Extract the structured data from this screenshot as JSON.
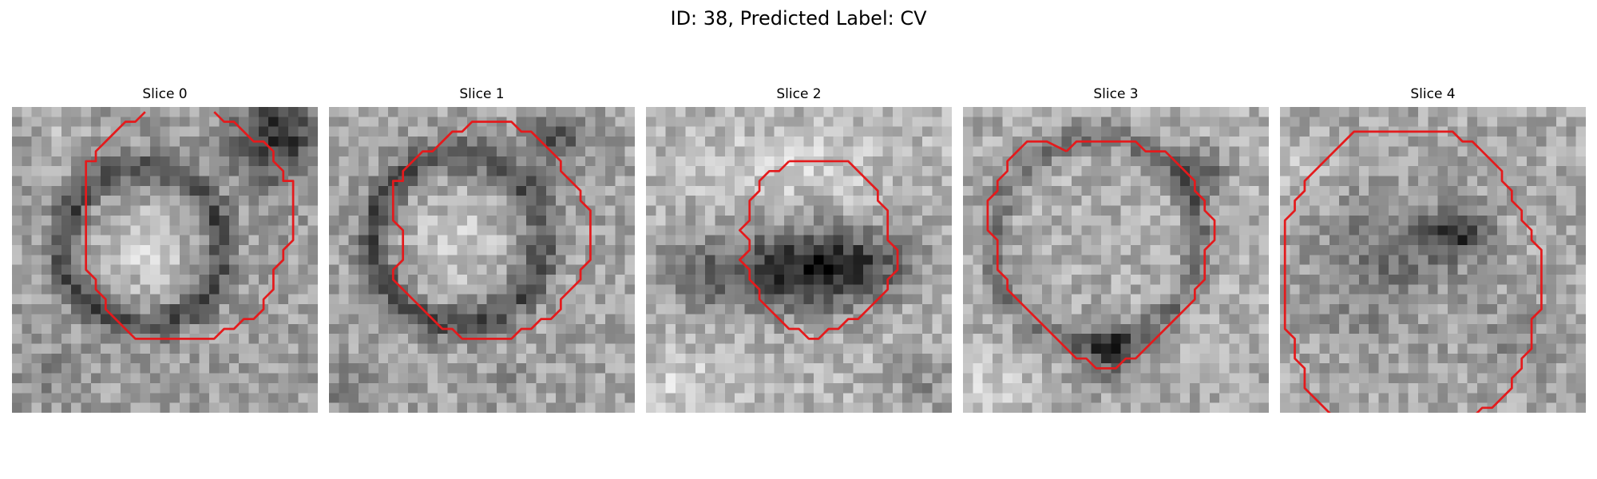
{
  "figure": {
    "title": "ID: 38, Predicted Label: CV"
  },
  "contour_color": "#e41a1c",
  "colormap": "gray",
  "panels": [
    {
      "title": "Slice 0"
    },
    {
      "title": "Slice 1"
    },
    {
      "title": "Slice 2"
    },
    {
      "title": "Slice 3"
    },
    {
      "title": "Slice 4"
    }
  ]
}
